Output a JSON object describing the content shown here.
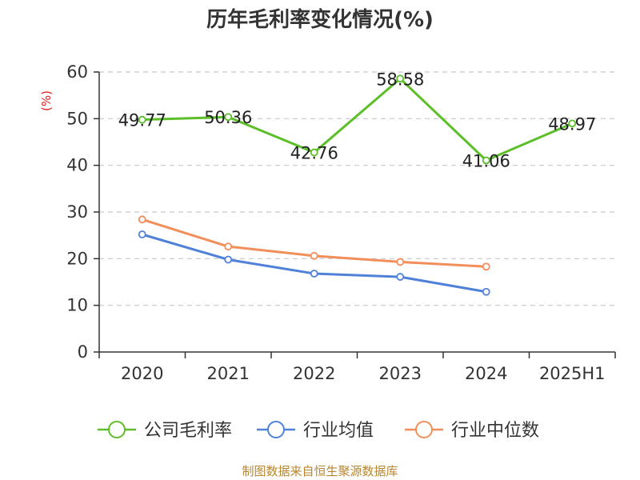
{
  "chart_data": {
    "type": "line",
    "title": "历年毛利率变化情况(%)",
    "ylabel": "(%)",
    "xlabel": "",
    "categories": [
      "2020",
      "2021",
      "2022",
      "2023",
      "2024",
      "2025H1"
    ],
    "ylim": [
      0,
      60
    ],
    "yticks": [
      0,
      10,
      20,
      30,
      40,
      50,
      60
    ],
    "grid": "horizontal-dashed",
    "legend_position": "bottom",
    "series": [
      {
        "name": "公司毛利率",
        "color": "#5cbf2a",
        "values": [
          49.77,
          50.36,
          42.76,
          58.58,
          41.06,
          48.97
        ],
        "labels": [
          "49.77",
          "50.36",
          "42.76",
          "58.58",
          "41.06",
          "48.97"
        ]
      },
      {
        "name": "行业均值",
        "color": "#4f81d9",
        "values": [
          25.2,
          19.8,
          16.8,
          16.1,
          12.9,
          null
        ]
      },
      {
        "name": "行业中位数",
        "color": "#f28e5a",
        "values": [
          28.4,
          22.6,
          20.6,
          19.3,
          18.3,
          null
        ]
      }
    ]
  },
  "source_text": "制图数据来自恒生聚源数据库"
}
